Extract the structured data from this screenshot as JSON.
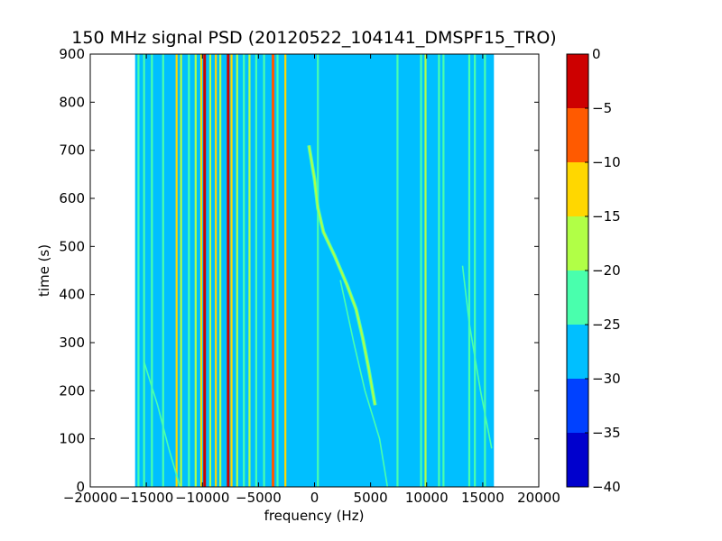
{
  "chart_data": {
    "type": "heatmap",
    "title": "150 MHz signal PSD (20120522_104141_DMSPF15_TRO)",
    "xlabel": "frequency (Hz)",
    "ylabel": "time (s)",
    "xlim": [
      -20000,
      20000
    ],
    "ylim": [
      0,
      900
    ],
    "xticks": [
      -20000,
      -15000,
      -10000,
      -5000,
      0,
      5000,
      10000,
      15000,
      20000
    ],
    "xtick_labels": [
      "−20000",
      "−15000",
      "−10000",
      "−5000",
      "0",
      "5000",
      "10000",
      "15000",
      "20000"
    ],
    "yticks": [
      0,
      100,
      200,
      300,
      400,
      500,
      600,
      700,
      800,
      900
    ],
    "ytick_labels": [
      "0",
      "100",
      "200",
      "300",
      "400",
      "500",
      "600",
      "700",
      "800",
      "900"
    ],
    "data_extent_x": [
      -16000,
      16000
    ],
    "background_level": -27.5,
    "colorbar": {
      "levels": [
        -40,
        -35,
        -30,
        -25,
        -20,
        -15,
        -10,
        -5,
        0
      ],
      "tick_labels": [
        "−40",
        "−35",
        "−30",
        "−25",
        "−20",
        "−15",
        "−10",
        "−5",
        "0"
      ],
      "colors": [
        "#0000cd",
        "#0041ff",
        "#00bfff",
        "#49ffad",
        "#b1ff46",
        "#ffd700",
        "#ff5a00",
        "#cd0000"
      ]
    },
    "vertical_lines": [
      {
        "x": -15700,
        "level": -22
      },
      {
        "x": -15200,
        "level": -22
      },
      {
        "x": -14500,
        "level": -22
      },
      {
        "x": -13500,
        "level": -22
      },
      {
        "x": -12300,
        "level": -12
      },
      {
        "x": -11900,
        "level": -17
      },
      {
        "x": -11200,
        "level": -22
      },
      {
        "x": -10600,
        "level": -17
      },
      {
        "x": -10100,
        "level": -12
      },
      {
        "x": -9800,
        "level": -2
      },
      {
        "x": -9300,
        "level": -17
      },
      {
        "x": -8800,
        "level": -12
      },
      {
        "x": -8400,
        "level": -17
      },
      {
        "x": -7700,
        "level": -2
      },
      {
        "x": -7400,
        "level": -12
      },
      {
        "x": -6900,
        "level": -17
      },
      {
        "x": -6300,
        "level": -22
      },
      {
        "x": -5800,
        "level": -17
      },
      {
        "x": -5200,
        "level": -22
      },
      {
        "x": -4500,
        "level": -22
      },
      {
        "x": -3700,
        "level": -7
      },
      {
        "x": -3300,
        "level": -22
      },
      {
        "x": -2600,
        "level": -12
      },
      {
        "x": 300,
        "level": -22
      },
      {
        "x": 7400,
        "level": -22
      },
      {
        "x": 9500,
        "level": -22
      },
      {
        "x": 9900,
        "level": -17
      },
      {
        "x": 11100,
        "level": -22
      },
      {
        "x": 11500,
        "level": -22
      },
      {
        "x": 13800,
        "level": -22
      },
      {
        "x": 14300,
        "level": -22
      },
      {
        "x": 15200,
        "level": -22
      }
    ],
    "doppler_track": [
      {
        "x": -500,
        "y": 710
      },
      {
        "x": 0,
        "y": 640
      },
      {
        "x": 300,
        "y": 580
      },
      {
        "x": 800,
        "y": 530
      },
      {
        "x": 1800,
        "y": 480
      },
      {
        "x": 2900,
        "y": 420
      },
      {
        "x": 3700,
        "y": 370
      },
      {
        "x": 4300,
        "y": 310
      },
      {
        "x": 4800,
        "y": 250
      },
      {
        "x": 5400,
        "y": 170
      }
    ],
    "faint_tracks": [
      [
        {
          "x": 2300,
          "y": 430
        },
        {
          "x": 3500,
          "y": 300
        },
        {
          "x": 4500,
          "y": 200
        },
        {
          "x": 5800,
          "y": 100
        },
        {
          "x": 6500,
          "y": 0
        }
      ],
      [
        {
          "x": -15200,
          "y": 260
        },
        {
          "x": -14000,
          "y": 170
        },
        {
          "x": -13000,
          "y": 80
        },
        {
          "x": -12000,
          "y": 0
        }
      ],
      [
        {
          "x": 13200,
          "y": 460
        },
        {
          "x": 13800,
          "y": 340
        },
        {
          "x": 14800,
          "y": 200
        },
        {
          "x": 15800,
          "y": 80
        }
      ]
    ]
  }
}
